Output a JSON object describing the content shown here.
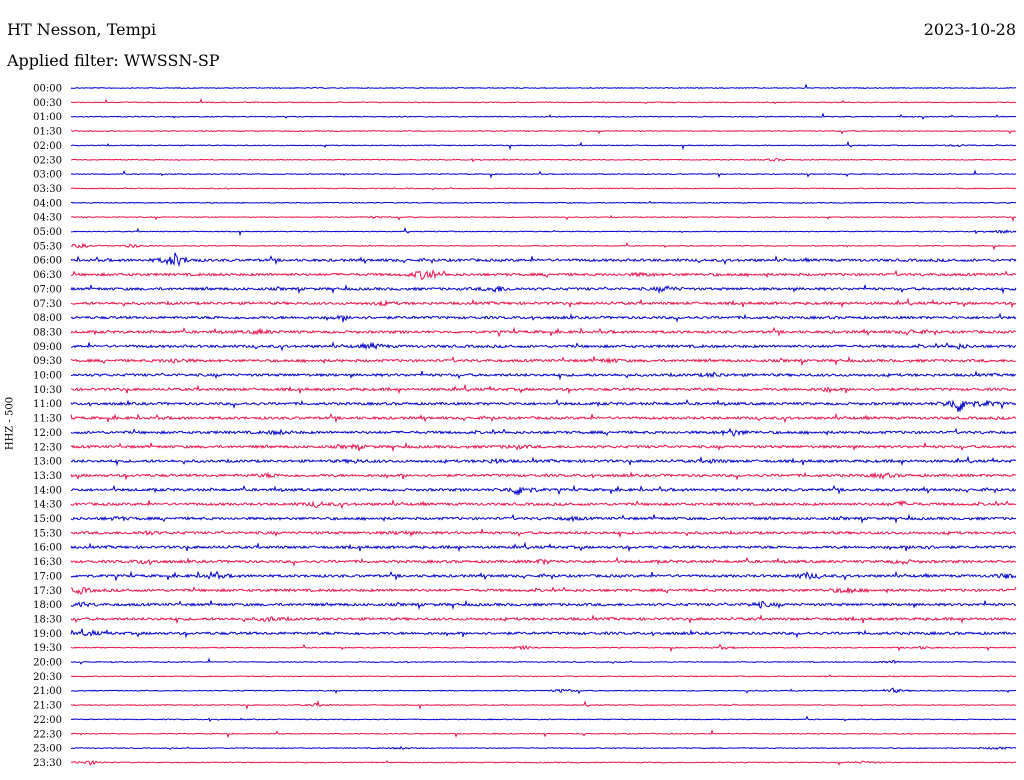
{
  "header": {
    "station": "HT Nesson, Tempi",
    "date": "2023-10-28",
    "filter": "Applied filter: WWSSN-SP"
  },
  "chart_data": {
    "type": "line",
    "title": "HT Nesson, Tempi",
    "ylabel": "HHZ - 500",
    "trace_colors": [
      "#0000cc",
      "#e8134a"
    ],
    "rows": [
      {
        "label": "00:00",
        "events": []
      },
      {
        "label": "00:30",
        "events": []
      },
      {
        "label": "01:00",
        "events": []
      },
      {
        "label": "01:30",
        "events": []
      },
      {
        "label": "02:00",
        "events": [
          [
            0.94,
            0.3
          ]
        ]
      },
      {
        "label": "02:30",
        "events": [
          [
            0.745,
            0.35
          ]
        ]
      },
      {
        "label": "03:00",
        "events": []
      },
      {
        "label": "03:30",
        "events": []
      },
      {
        "label": "04:00",
        "events": []
      },
      {
        "label": "04:30",
        "events": [
          [
            0.32,
            0.25
          ]
        ]
      },
      {
        "label": "05:00",
        "events": [
          [
            0.985,
            0.4
          ]
        ]
      },
      {
        "label": "05:30",
        "events": [
          [
            0.01,
            0.6
          ],
          [
            0.065,
            0.5
          ]
        ]
      },
      {
        "label": "06:00",
        "events": [
          [
            0.11,
            1.9
          ]
        ]
      },
      {
        "label": "06:30",
        "events": [
          [
            0.375,
            1.6
          ],
          [
            0.605,
            0.4
          ]
        ]
      },
      {
        "label": "07:00",
        "events": [
          [
            0.45,
            0.9
          ],
          [
            0.63,
            0.7
          ]
        ]
      },
      {
        "label": "07:30",
        "events": [
          [
            0.33,
            0.4
          ]
        ]
      },
      {
        "label": "08:00",
        "events": [
          [
            0.29,
            0.4
          ]
        ]
      },
      {
        "label": "08:30",
        "events": [
          [
            0.2,
            0.5
          ],
          [
            0.89,
            0.5
          ]
        ]
      },
      {
        "label": "09:00",
        "events": [
          [
            0.32,
            0.7
          ],
          [
            0.94,
            0.5
          ]
        ]
      },
      {
        "label": "09:30",
        "events": [
          [
            0.11,
            0.6
          ],
          [
            0.57,
            0.5
          ]
        ]
      },
      {
        "label": "10:00",
        "events": [
          [
            0.68,
            0.5
          ]
        ]
      },
      {
        "label": "10:30",
        "events": [
          [
            0.8,
            0.4
          ]
        ]
      },
      {
        "label": "11:00",
        "events": [
          [
            0.94,
            2.6
          ],
          [
            0.97,
            0.6
          ]
        ]
      },
      {
        "label": "11:30",
        "events": []
      },
      {
        "label": "12:00",
        "events": [
          [
            0.22,
            0.5
          ],
          [
            0.7,
            0.9
          ]
        ]
      },
      {
        "label": "12:30",
        "events": [
          [
            0.3,
            0.4
          ],
          [
            0.47,
            0.5
          ]
        ]
      },
      {
        "label": "13:00",
        "events": [
          [
            0.3,
            0.4
          ],
          [
            0.45,
            0.5
          ],
          [
            0.68,
            0.4
          ]
        ]
      },
      {
        "label": "13:30",
        "events": [
          [
            0.21,
            0.4
          ],
          [
            0.86,
            0.6
          ]
        ]
      },
      {
        "label": "14:00",
        "events": [
          [
            0.475,
            1.7
          ]
        ]
      },
      {
        "label": "14:30",
        "events": [
          [
            0.26,
            0.6
          ],
          [
            0.88,
            0.6
          ]
        ]
      },
      {
        "label": "15:00",
        "events": [
          [
            0.05,
            0.4
          ],
          [
            0.53,
            0.4
          ]
        ]
      },
      {
        "label": "15:30",
        "events": [
          [
            0.08,
            0.4
          ],
          [
            0.35,
            0.4
          ]
        ]
      },
      {
        "label": "16:00",
        "events": [
          [
            0.9,
            0.5
          ]
        ]
      },
      {
        "label": "16:30",
        "events": [
          [
            0.08,
            0.6
          ],
          [
            0.5,
            0.5
          ],
          [
            0.88,
            0.5
          ]
        ]
      },
      {
        "label": "17:00",
        "events": [
          [
            0.15,
            0.8
          ],
          [
            0.78,
            0.8
          ],
          [
            0.99,
            0.6
          ]
        ]
      },
      {
        "label": "17:30",
        "events": [
          [
            0.01,
            0.8
          ],
          [
            0.82,
            0.8
          ]
        ]
      },
      {
        "label": "18:00",
        "events": [
          [
            0.01,
            0.6
          ],
          [
            0.73,
            0.7
          ]
        ]
      },
      {
        "label": "18:30",
        "events": [
          [
            0.21,
            0.6
          ]
        ]
      },
      {
        "label": "19:00",
        "events": [
          [
            0.02,
            0.6
          ]
        ]
      },
      {
        "label": "19:30",
        "events": [
          [
            0.48,
            0.5
          ],
          [
            0.69,
            0.4
          ],
          [
            0.9,
            0.4
          ]
        ]
      },
      {
        "label": "20:00",
        "events": [
          [
            0.87,
            0.4
          ]
        ]
      },
      {
        "label": "20:30",
        "events": []
      },
      {
        "label": "21:00",
        "events": [
          [
            0.52,
            0.5
          ],
          [
            0.87,
            0.6
          ]
        ]
      },
      {
        "label": "21:30",
        "events": [
          [
            0.26,
            0.4
          ]
        ]
      },
      {
        "label": "22:00",
        "events": []
      },
      {
        "label": "22:30",
        "events": []
      },
      {
        "label": "23:00",
        "events": [
          [
            0.35,
            0.3
          ],
          [
            0.98,
            0.4
          ]
        ]
      },
      {
        "label": "23:30",
        "events": [
          [
            0.02,
            0.6
          ],
          [
            0.84,
            0.4
          ]
        ]
      }
    ]
  }
}
